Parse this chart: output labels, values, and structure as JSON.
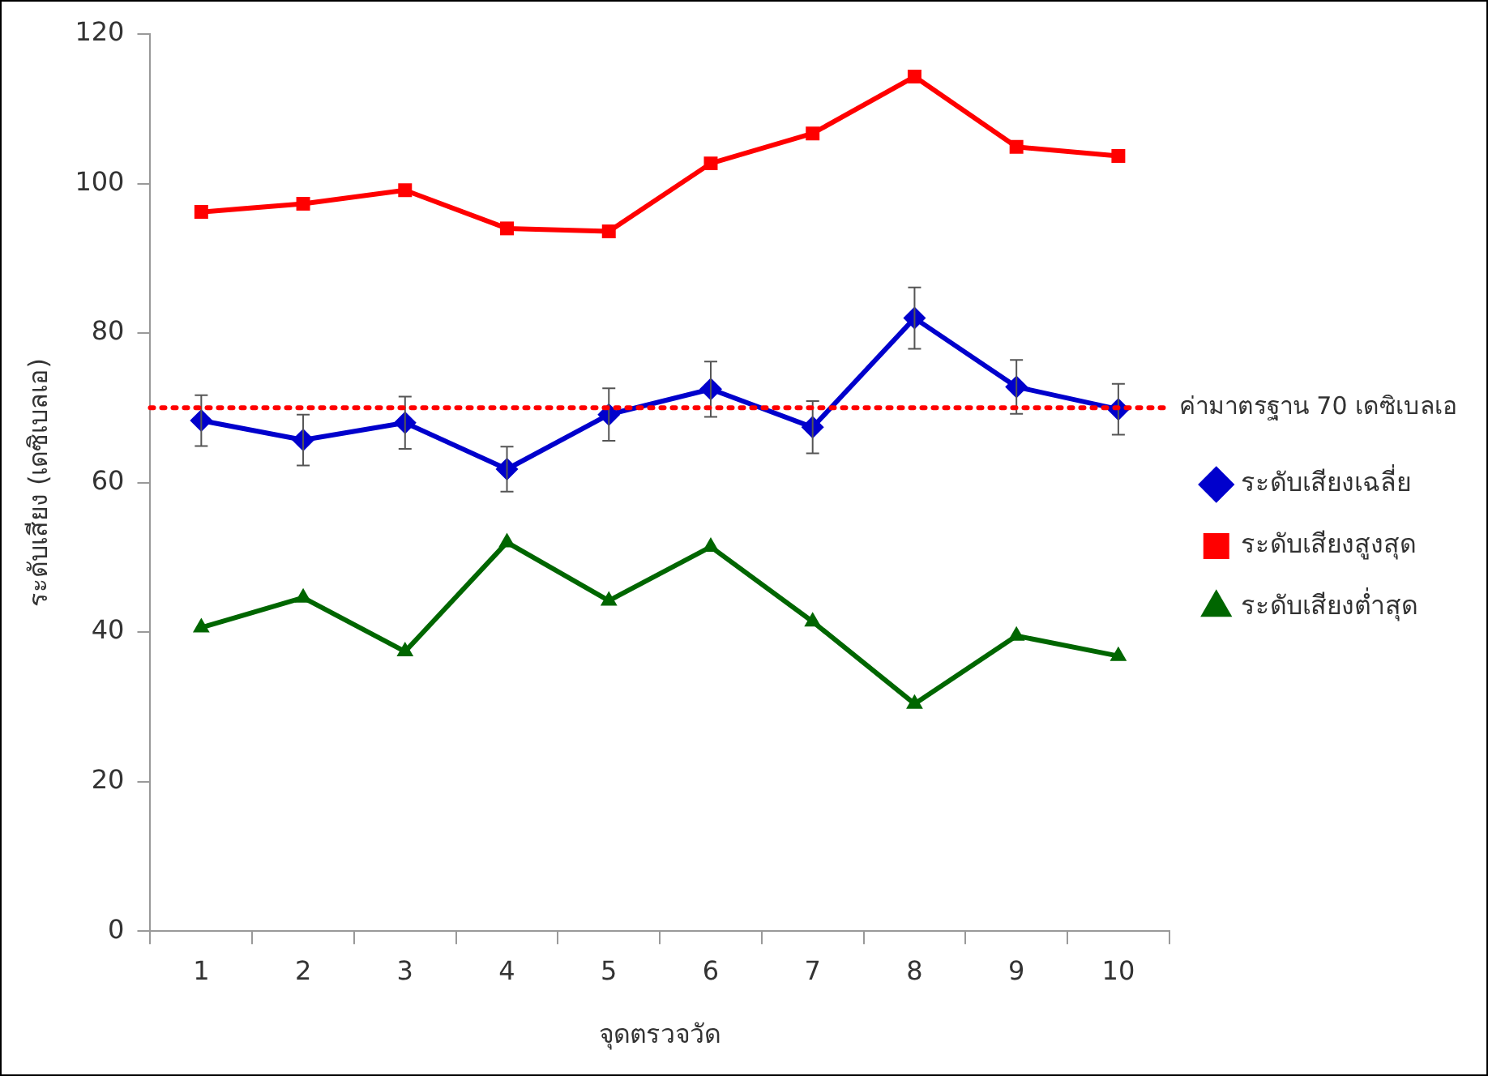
{
  "chart_data": {
    "type": "line",
    "xlabel": "จุดตรวจวัด",
    "ylabel": "ระดับเสียง (เดซิเบลเอ)",
    "categories": [
      "1",
      "2",
      "3",
      "4",
      "5",
      "6",
      "7",
      "8",
      "9",
      "10"
    ],
    "series": [
      {
        "name": "ระดับเสียงเฉลี่ย",
        "color": "#0000cc",
        "marker": "diamond",
        "values": [
          68.3,
          65.7,
          68.0,
          61.8,
          69.1,
          72.5,
          67.4,
          82.0,
          72.8,
          69.8
        ],
        "errors": [
          3.4,
          3.4,
          3.5,
          3.0,
          3.5,
          3.7,
          3.5,
          4.1,
          3.6,
          3.4
        ]
      },
      {
        "name": "ระดับเสียงสูงสุด",
        "color": "#ff0000",
        "marker": "square",
        "values": [
          96.2,
          97.3,
          99.1,
          94.0,
          93.6,
          102.7,
          106.7,
          114.3,
          104.9,
          103.7
        ]
      },
      {
        "name": "ระดับเสียงต่ำสุด",
        "color": "#006600",
        "marker": "triangle",
        "values": [
          40.6,
          44.6,
          37.4,
          52.0,
          44.2,
          51.4,
          41.4,
          30.4,
          39.5,
          36.8
        ]
      }
    ],
    "ylim": [
      0,
      120
    ],
    "yticks": [
      0,
      20,
      40,
      60,
      80,
      100,
      120
    ],
    "grid": false,
    "legend": "right",
    "line_style": "solid",
    "ref_lines": [
      {
        "axis": "y",
        "value": 70,
        "label": "ค่ามาตรฐาน 70 เดซิเบลเอ",
        "color": "#ff0000",
        "line_style": "dotted"
      }
    ]
  }
}
